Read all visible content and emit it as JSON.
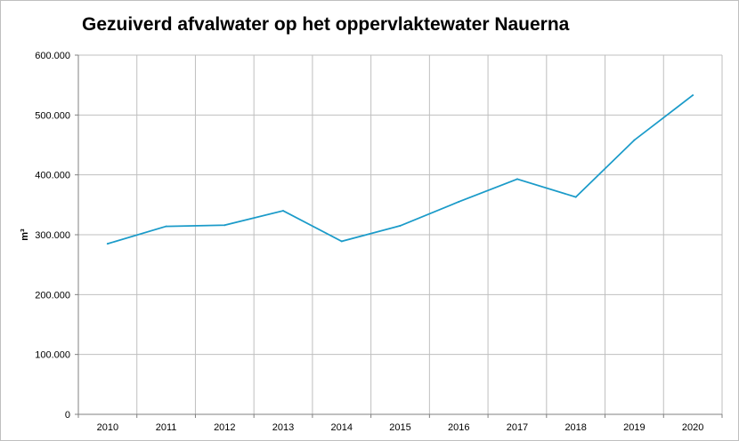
{
  "chart_data": {
    "type": "line",
    "title": "Gezuiverd afvalwater op het oppervlaktewater Nauerna",
    "xlabel": "",
    "ylabel": "m³",
    "categories": [
      "2010",
      "2011",
      "2012",
      "2013",
      "2014",
      "2015",
      "2016",
      "2017",
      "2018",
      "2019",
      "2020"
    ],
    "series": [
      {
        "values": [
          285000,
          314000,
          316000,
          340000,
          289000,
          315000,
          355000,
          393000,
          363000,
          458000,
          533000
        ]
      }
    ],
    "ylim": [
      0,
      600000
    ],
    "yticks": [
      0,
      100000,
      200000,
      300000,
      400000,
      500000,
      600000
    ],
    "ytick_labels": [
      "0",
      "100.000",
      "200.000",
      "300.000",
      "400.000",
      "500.000",
      "600.000"
    ],
    "grid": true,
    "legend": "none",
    "colors": {
      "line": "#1b9bc9",
      "grid": "#bfbfbf",
      "axis": "#808080"
    }
  }
}
